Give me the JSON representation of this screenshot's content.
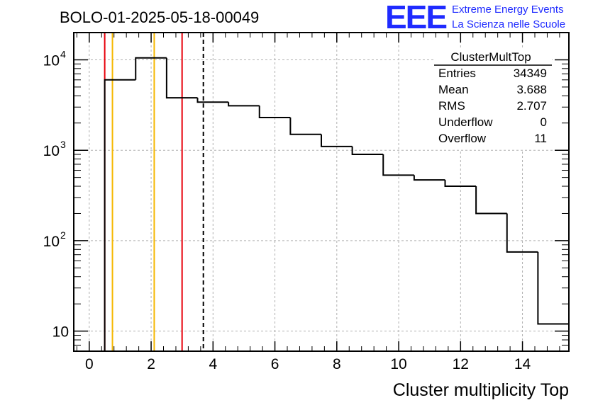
{
  "page_title": "BOLO-01-2025-05-18-00049",
  "logo": {
    "mark": "EEE",
    "line1": "Extreme Energy Events",
    "line2": "La Scienza nelle Scuole",
    "color": "#1f2bff"
  },
  "chart_data": {
    "type": "histogram",
    "title": "BOLO-01-2025-05-18-00049",
    "xlabel": "Cluster multiplicity Top",
    "ylabel": "",
    "y_scale": "log",
    "xlim": [
      -0.5,
      15.5
    ],
    "ylim": [
      6,
      20000
    ],
    "grid": true,
    "x_ticks": [
      0,
      2,
      4,
      6,
      8,
      10,
      12,
      14
    ],
    "x_tick_labels": [
      "0",
      "2",
      "4",
      "6",
      "8",
      "10",
      "12",
      "14"
    ],
    "y_ticks": [
      {
        "value": 10,
        "label": "10",
        "exponent": ""
      },
      {
        "value": 100,
        "label": "10",
        "exponent": "2"
      },
      {
        "value": 1000,
        "label": "10",
        "exponent": "3"
      },
      {
        "value": 10000,
        "label": "10",
        "exponent": "4"
      }
    ],
    "bin_edges": [
      -0.5,
      0.5,
      1.5,
      2.5,
      3.5,
      4.5,
      5.5,
      6.5,
      7.5,
      8.5,
      9.5,
      10.5,
      11.5,
      12.5,
      13.5,
      14.5,
      15.5
    ],
    "counts": [
      0,
      6000,
      10500,
      3800,
      3400,
      3100,
      2300,
      1500,
      1100,
      900,
      530,
      470,
      400,
      200,
      75,
      12
    ],
    "vertical_lines": [
      {
        "x": 0.5,
        "color": "#e8000b",
        "style": "solid",
        "label": "red"
      },
      {
        "x": 0.75,
        "color": "#f5b800",
        "style": "solid",
        "label": "orange"
      },
      {
        "x": 2.1,
        "color": "#f5b800",
        "style": "solid",
        "label": "orange"
      },
      {
        "x": 3.0,
        "color": "#e8000b",
        "style": "solid",
        "label": "red"
      },
      {
        "x": 3.688,
        "color": "#000000",
        "style": "dashed",
        "label": "mean"
      }
    ],
    "stats_box": {
      "name": "ClusterMultTop",
      "rows": [
        {
          "label": "Entries",
          "value": "34349"
        },
        {
          "label": "Mean",
          "value": "3.688"
        },
        {
          "label": "RMS",
          "value": "2.707"
        },
        {
          "label": "Underflow",
          "value": "0"
        },
        {
          "label": "Overflow",
          "value": "11"
        }
      ]
    }
  }
}
